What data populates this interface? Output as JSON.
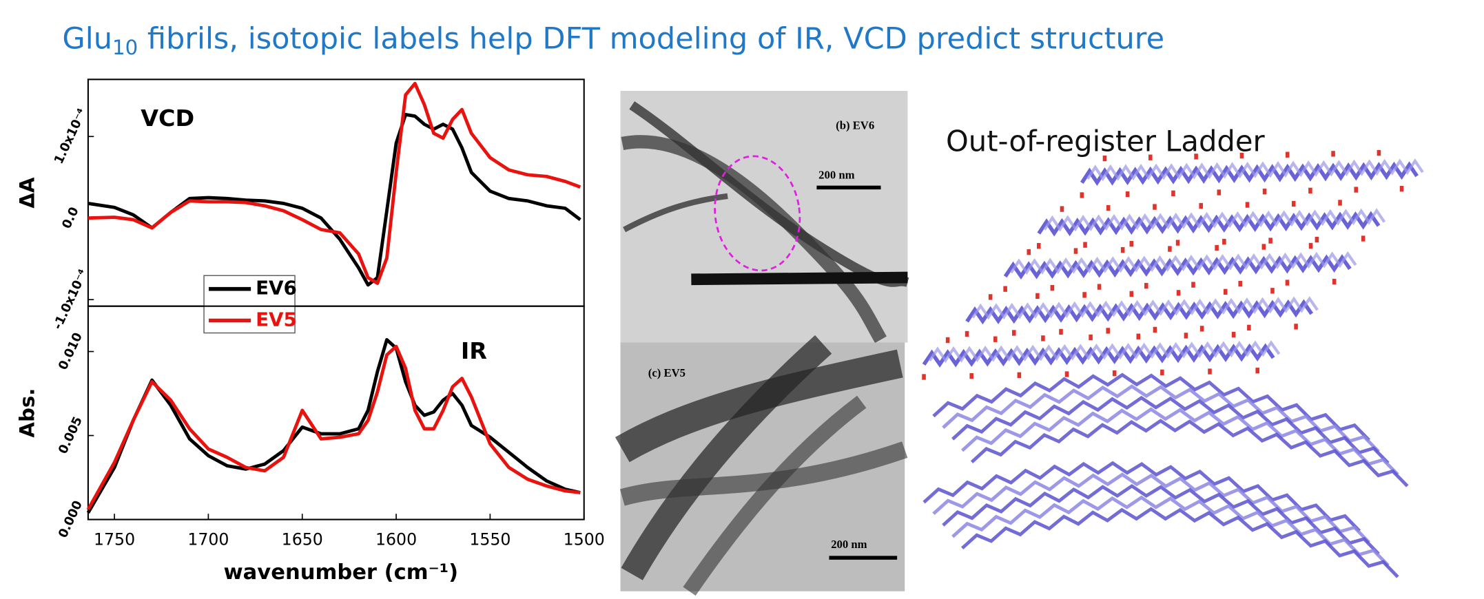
{
  "title": {
    "main": "Glu",
    "sub": "10",
    "rest": " fibrils, isotopic labels help DFT modeling of IR, VCD predict structure"
  },
  "chart_data": [
    {
      "type": "line",
      "label": "VCD",
      "ylabel": "ΔA",
      "x": [
        1764,
        1750,
        1740,
        1730,
        1720,
        1710,
        1700,
        1690,
        1680,
        1670,
        1660,
        1650,
        1640,
        1630,
        1620,
        1615,
        1610,
        1605,
        1600,
        1595,
        1590,
        1585,
        1580,
        1575,
        1570,
        1565,
        1560,
        1550,
        1540,
        1530,
        1520,
        1510,
        1502
      ],
      "xlim": [
        1764,
        1500
      ],
      "ylim": [
        -0.000108,
        0.00017
      ],
      "yticks": [
        {
          "value": -0.0001,
          "label": "-1.0x10⁻⁴"
        },
        {
          "value": 0,
          "label": "0.0"
        },
        {
          "value": 0.0001,
          "label": "1.0x10⁻⁴"
        }
      ],
      "series": [
        {
          "name": "EV6",
          "color": "#000000",
          "values": [
            1.8e-05,
            1.3e-05,
            4e-06,
            -1.2e-05,
            7e-06,
            2.4e-05,
            2.5e-05,
            2.4e-05,
            2.2e-05,
            2.1e-05,
            1.8e-05,
            1.2e-05,
            0,
            -2.6e-05,
            -6.1e-05,
            -8.2e-05,
            -7.3e-05,
            9e-06,
            9.2e-05,
            0.000127,
            0.000125,
            0.000115,
            0.000109,
            0.000115,
            0.000109,
            8.6e-05,
            5.6e-05,
            3.3e-05,
            2.4e-05,
            2.1e-05,
            1.5e-05,
            1.2e-05,
            -2e-06
          ]
        },
        {
          "name": "EV5",
          "color": "#e8130f",
          "values": [
            0,
            1e-06,
            -2e-06,
            -1.2e-05,
            7e-06,
            2.1e-05,
            2e-05,
            2e-05,
            1.9e-05,
            1.5e-05,
            9e-06,
            -2e-06,
            -1.4e-05,
            -1.8e-05,
            -4.4e-05,
            -7.3e-05,
            -8e-05,
            -4.9e-05,
            5.6e-05,
            0.000151,
            0.000165,
            0.000139,
            0.000104,
            9.8e-05,
            0.000121,
            0.000133,
            0.000104,
            7.4e-05,
            5.9e-05,
            5.3e-05,
            5.1e-05,
            4.5e-05,
            3.8e-05
          ]
        }
      ]
    },
    {
      "type": "line",
      "label": "IR",
      "ylabel": "Abs.",
      "xlabel": "wavenumber (cm⁻¹)",
      "x": [
        1764,
        1750,
        1740,
        1730,
        1720,
        1710,
        1700,
        1690,
        1680,
        1670,
        1660,
        1650,
        1640,
        1630,
        1620,
        1615,
        1610,
        1605,
        1600,
        1595,
        1590,
        1585,
        1580,
        1575,
        1570,
        1565,
        1560,
        1550,
        1540,
        1530,
        1520,
        1510,
        1502
      ],
      "xlim": [
        1764,
        1500
      ],
      "ylim": [
        0,
        0.0127
      ],
      "xticks": [
        1750,
        1700,
        1650,
        1600,
        1550,
        1500
      ],
      "yticks": [
        {
          "value": 0,
          "label": "0.000"
        },
        {
          "value": 0.005,
          "label": "0.005"
        },
        {
          "value": 0.01,
          "label": "0.010"
        }
      ],
      "series": [
        {
          "color": "#000000",
          "values": [
            0.0004,
            0.0031,
            0.0059,
            0.0083,
            0.0068,
            0.0048,
            0.0038,
            0.0032,
            0.003,
            0.0033,
            0.0041,
            0.0055,
            0.0051,
            0.0051,
            0.0054,
            0.0065,
            0.0088,
            0.0107,
            0.0102,
            0.0082,
            0.0068,
            0.0062,
            0.0064,
            0.0071,
            0.0075,
            0.0068,
            0.0056,
            0.0049,
            0.004,
            0.0031,
            0.0023,
            0.0018,
            0.0016
          ]
        },
        {
          "color": "#e8130f",
          "values": [
            0.0006,
            0.0034,
            0.0059,
            0.0082,
            0.0071,
            0.0054,
            0.0042,
            0.0037,
            0.0031,
            0.0029,
            0.0037,
            0.0065,
            0.0048,
            0.0049,
            0.0051,
            0.0059,
            0.0076,
            0.0098,
            0.0103,
            0.009,
            0.0065,
            0.0054,
            0.0054,
            0.0065,
            0.0079,
            0.0084,
            0.0073,
            0.0045,
            0.0031,
            0.0024,
            0.002,
            0.0017,
            0.0016
          ]
        }
      ]
    }
  ],
  "tem_panels": [
    {
      "label": "(b) EV6",
      "scale": "200 nm"
    },
    {
      "label": "(c) EV5",
      "scale": "200 nm"
    }
  ],
  "model": {
    "label": "Out-of-register Ladder"
  }
}
